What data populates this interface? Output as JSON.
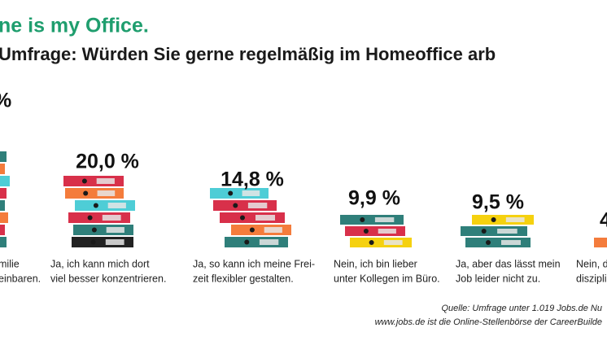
{
  "chart_data": {
    "type": "bar",
    "title": "ne is my Office.",
    "subtitle": "Umfrage: Würden Sie gerne regelmäßig im Homeoffice arb",
    "categories": [
      [
        "milie",
        "einbaren."
      ],
      [
        "Ja, ich kann mich dort",
        "viel besser konzentrieren."
      ],
      [
        "Ja, so kann ich meine Frei-",
        "zeit flexibler gestalten."
      ],
      [
        "Nein, ich bin lieber",
        "unter Kollegen im Büro."
      ],
      [
        "Ja, aber das lässt mein",
        "Job leider nicht zu."
      ],
      [
        "Nein, d",
        "disziplin"
      ]
    ],
    "values": [
      null,
      20.0,
      14.8,
      9.9,
      9.5,
      null
    ],
    "value_labels": [
      "%",
      "20,0 %",
      "14,8 %",
      "9,9 %",
      "9,5 %",
      "4"
    ],
    "source": [
      "Quelle: Umfrage unter 1.019 Jobs.de Nu",
      "www.jobs.de ist die Online-Stellenbörse der CareerBuilde"
    ]
  }
}
